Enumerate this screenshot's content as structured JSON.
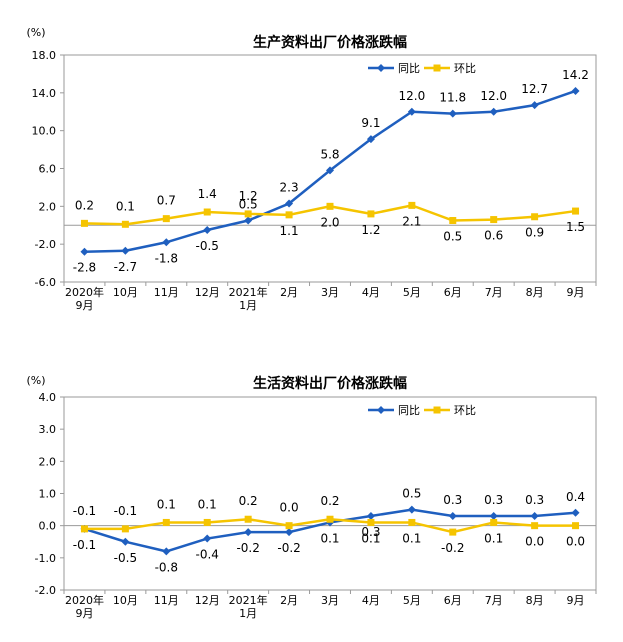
{
  "chart_data": [
    {
      "type": "line",
      "title": "生产资料出厂价格涨跌幅",
      "unit": "(%)",
      "ylim": [
        -6.0,
        18.0
      ],
      "y_ticks": [
        "18.0",
        "14.0",
        "10.0",
        "6.0",
        "2.0",
        "-2.0",
        "-6.0"
      ],
      "categories": [
        [
          "2020年",
          "9月"
        ],
        [
          "10月"
        ],
        [
          "11月"
        ],
        [
          "12月"
        ],
        [
          "2021年",
          "1月"
        ],
        [
          "2月"
        ],
        [
          "3月"
        ],
        [
          "4月"
        ],
        [
          "5月"
        ],
        [
          "6月"
        ],
        [
          "7月"
        ],
        [
          "8月"
        ],
        [
          "9月"
        ]
      ],
      "legend_position": "top-right",
      "grid": false,
      "series": [
        {
          "name": "同比",
          "color": "#1f5fbf",
          "marker": "diamond",
          "values": [
            -2.8,
            -2.7,
            -1.8,
            -0.5,
            0.5,
            2.3,
            5.8,
            9.1,
            12.0,
            11.8,
            12.0,
            12.7,
            14.2
          ],
          "labels": [
            "-2.8",
            "-2.7",
            "-1.8",
            "-0.5",
            "0.5",
            "2.3",
            "5.8",
            "9.1",
            "12.0",
            "11.8",
            "12.0",
            "12.7",
            "14.2"
          ]
        },
        {
          "name": "环比",
          "color": "#f5c400",
          "marker": "square",
          "values": [
            0.2,
            0.1,
            0.7,
            1.4,
            1.2,
            1.1,
            2.0,
            1.2,
            2.1,
            0.5,
            0.6,
            0.9,
            1.5
          ],
          "labels": [
            "0.2",
            "0.1",
            "0.7",
            "1.4",
            "1.2",
            "1.1",
            "2.0",
            "1.2",
            "2.1",
            "0.5",
            "0.6",
            "0.9",
            "1.5"
          ]
        }
      ]
    },
    {
      "type": "line",
      "title": "生活资料出厂价格涨跌幅",
      "unit": "(%)",
      "ylim": [
        -2.0,
        4.0
      ],
      "y_ticks": [
        "4.0",
        "3.0",
        "2.0",
        "1.0",
        "0.0",
        "-1.0",
        "-2.0"
      ],
      "categories": [
        [
          "2020年",
          "9月"
        ],
        [
          "10月"
        ],
        [
          "11月"
        ],
        [
          "12月"
        ],
        [
          "2021年",
          "1月"
        ],
        [
          "2月"
        ],
        [
          "3月"
        ],
        [
          "4月"
        ],
        [
          "5月"
        ],
        [
          "6月"
        ],
        [
          "7月"
        ],
        [
          "8月"
        ],
        [
          "9月"
        ]
      ],
      "legend_position": "top-right",
      "grid": false,
      "series": [
        {
          "name": "同比",
          "color": "#1f5fbf",
          "marker": "diamond",
          "values": [
            -0.1,
            -0.5,
            -0.8,
            -0.4,
            -0.2,
            -0.2,
            0.1,
            0.3,
            0.5,
            0.3,
            0.3,
            0.3,
            0.4
          ],
          "labels": [
            "-0.1",
            "-0.5",
            "-0.8",
            "-0.4",
            "-0.2",
            "-0.2",
            "0.1",
            "0.3",
            "0.5",
            "0.3",
            "0.3",
            "0.3",
            "0.4"
          ]
        },
        {
          "name": "环比",
          "color": "#f5c400",
          "marker": "square",
          "values": [
            -0.1,
            -0.1,
            0.1,
            0.1,
            0.2,
            0.0,
            0.2,
            0.1,
            0.1,
            -0.2,
            0.1,
            0.0,
            0.0
          ],
          "labels": [
            "-0.1",
            "-0.1",
            "0.1",
            "0.1",
            "0.2",
            "0.0",
            "0.2",
            "0.1",
            "0.1",
            "-0.2",
            "0.1",
            "0.0",
            "0.0"
          ]
        }
      ]
    }
  ]
}
